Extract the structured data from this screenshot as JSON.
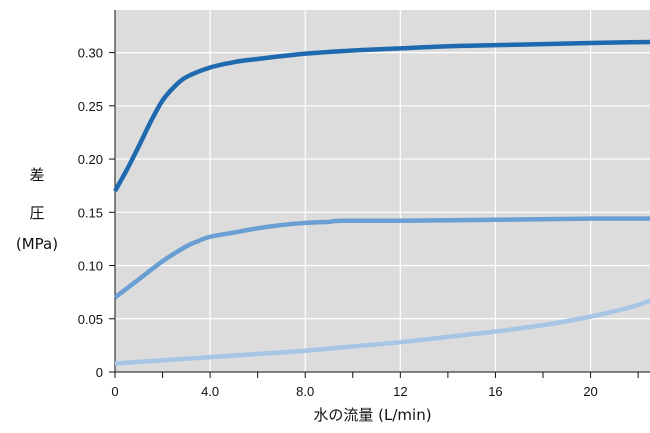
{
  "chart_data": {
    "type": "line",
    "title": "",
    "xlabel": "水の流量 (L/min)",
    "ylabel_lines": [
      "差",
      "圧",
      "(MPa)"
    ],
    "xlim": [
      0,
      22.5
    ],
    "ylim": [
      0,
      0.34
    ],
    "x_ticks": [
      {
        "value": 0,
        "label": "0"
      },
      {
        "value": 4,
        "label": "4.0"
      },
      {
        "value": 8,
        "label": "8.0"
      },
      {
        "value": 12,
        "label": "12"
      },
      {
        "value": 16,
        "label": "16"
      },
      {
        "value": 20,
        "label": "20"
      }
    ],
    "x_minor_ticks": [
      2,
      6,
      10,
      14,
      18,
      22
    ],
    "y_ticks": [
      {
        "value": 0,
        "label": "0"
      },
      {
        "value": 0.05,
        "label": "0.05"
      },
      {
        "value": 0.1,
        "label": "0.10"
      },
      {
        "value": 0.15,
        "label": "0.15"
      },
      {
        "value": 0.2,
        "label": "0.20"
      },
      {
        "value": 0.25,
        "label": "0.25"
      },
      {
        "value": 0.3,
        "label": "0.30"
      }
    ],
    "grid": true,
    "background_color": "#dcdcdc",
    "series": [
      {
        "color": "#1f6aaf",
        "width": 4.5,
        "points": [
          [
            0,
            0.17
          ],
          [
            0.5,
            0.19
          ],
          [
            1,
            0.212
          ],
          [
            1.5,
            0.235
          ],
          [
            2,
            0.255
          ],
          [
            2.5,
            0.268
          ],
          [
            3,
            0.277
          ],
          [
            4,
            0.286
          ],
          [
            5,
            0.291
          ],
          [
            6,
            0.294
          ],
          [
            8,
            0.299
          ],
          [
            10,
            0.302
          ],
          [
            12,
            0.304
          ],
          [
            14,
            0.306
          ],
          [
            16,
            0.307
          ],
          [
            18,
            0.308
          ],
          [
            20,
            0.309
          ],
          [
            22.5,
            0.31
          ]
        ]
      },
      {
        "color": "#6a9fd4",
        "width": 4.5,
        "points": [
          [
            0,
            0.07
          ],
          [
            1,
            0.087
          ],
          [
            2,
            0.104
          ],
          [
            3,
            0.118
          ],
          [
            3.5,
            0.123
          ],
          [
            4,
            0.127
          ],
          [
            5,
            0.131
          ],
          [
            6,
            0.135
          ],
          [
            7,
            0.138
          ],
          [
            8,
            0.14
          ],
          [
            9,
            0.141
          ],
          [
            9.5,
            0.142
          ],
          [
            12,
            0.142
          ],
          [
            16,
            0.143
          ],
          [
            20,
            0.144
          ],
          [
            22.5,
            0.144
          ]
        ]
      },
      {
        "color": "#a7c6e6",
        "width": 4.5,
        "points": [
          [
            0,
            0.008
          ],
          [
            2,
            0.011
          ],
          [
            4,
            0.014
          ],
          [
            6,
            0.017
          ],
          [
            8,
            0.02
          ],
          [
            10,
            0.024
          ],
          [
            12,
            0.028
          ],
          [
            14,
            0.033
          ],
          [
            16,
            0.038
          ],
          [
            18,
            0.044
          ],
          [
            20,
            0.052
          ],
          [
            21,
            0.057
          ],
          [
            22,
            0.063
          ],
          [
            22.5,
            0.067
          ]
        ]
      }
    ]
  }
}
